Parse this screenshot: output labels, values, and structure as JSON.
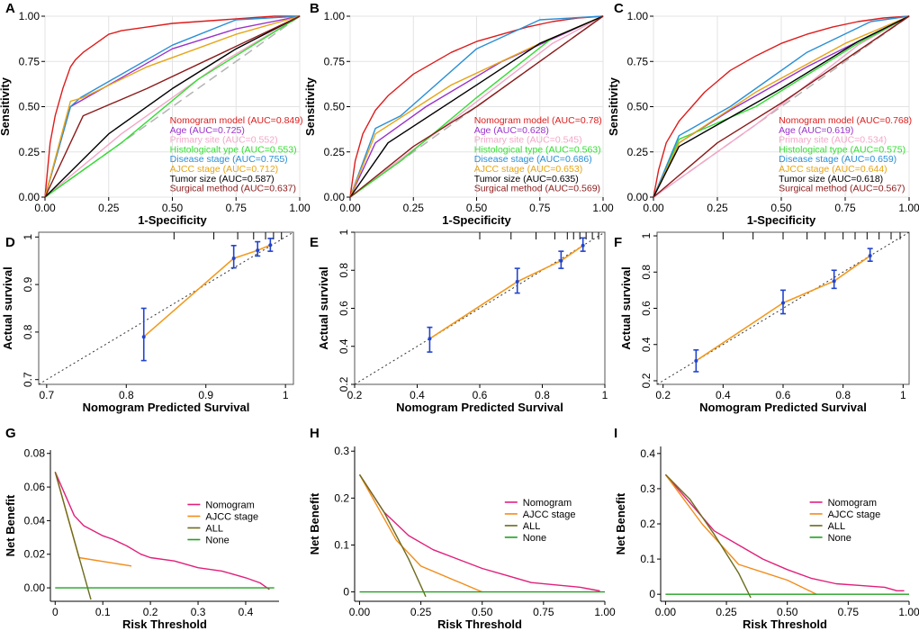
{
  "figure": {
    "colors": {
      "nomogram": "#dd1c1c",
      "age": "#9932cc",
      "primary_site": "#f4a6c8",
      "histological": "#33dd33",
      "disease_stage": "#2a8fd6",
      "ajcc": "#e6a515",
      "tumor_size": "#000000",
      "surgical": "#8b1a1a",
      "ref": "#b3b3b3",
      "dca_nomogram": "#e0207a",
      "dca_ajcc": "#f28c1a",
      "dca_all": "#6b6b1e",
      "dca_none": "#22a022",
      "cal_line": "#f29a1f",
      "cal_err": "#2244cc"
    }
  },
  "chart_data": [
    {
      "panel": "A",
      "type": "line",
      "xlabel": "1-Specificity",
      "ylabel": "Sensitivity",
      "xlim": [
        0,
        1
      ],
      "ylim": [
        0,
        1
      ],
      "xticks": [
        "0.00",
        "0.25",
        "0.50",
        "0.75",
        "1.00"
      ],
      "yticks": [
        "0.00",
        "0.25",
        "0.50",
        "0.75",
        "1.00"
      ],
      "legend": [
        "Nomogram model (AUC=0.849)",
        "Age (AUC=0.725)",
        "Primary site (AUC=0.552)",
        "Histologicalt ype (AUC=0.553)",
        "Disease stage (AUC=0.755)",
        "AJCC stage (AUC=0.712)",
        "Tumor size (AUC=0.587)",
        "Surgical method (AUC=0.637)"
      ],
      "series": [
        {
          "name": "Nomogram model",
          "color": "nomogram",
          "x": [
            0,
            0.02,
            0.04,
            0.07,
            0.1,
            0.12,
            0.15,
            0.2,
            0.25,
            0.3,
            0.4,
            0.5,
            0.6,
            0.7,
            0.8,
            0.9,
            1
          ],
          "y": [
            0,
            0.3,
            0.45,
            0.6,
            0.72,
            0.76,
            0.8,
            0.85,
            0.9,
            0.92,
            0.94,
            0.96,
            0.97,
            0.98,
            0.99,
            1,
            1
          ]
        },
        {
          "name": "Age",
          "color": "age",
          "x": [
            0,
            0.1,
            0.25,
            0.5,
            0.75,
            1
          ],
          "y": [
            0,
            0.5,
            0.62,
            0.82,
            0.93,
            1
          ]
        },
        {
          "name": "Primary site",
          "color": "primary_site",
          "x": [
            0,
            0.3,
            0.7,
            1
          ],
          "y": [
            0,
            0.35,
            0.75,
            1
          ]
        },
        {
          "name": "Histologicalt ype",
          "color": "histological",
          "x": [
            0,
            0.3,
            0.6,
            1
          ],
          "y": [
            0,
            0.3,
            0.65,
            1
          ]
        },
        {
          "name": "Disease stage",
          "color": "disease_stage",
          "x": [
            0,
            0.1,
            0.14,
            0.5,
            0.75,
            1
          ],
          "y": [
            0,
            0.5,
            0.55,
            0.84,
            0.98,
            1
          ]
        },
        {
          "name": "AJCC stage",
          "color": "ajcc",
          "x": [
            0,
            0.1,
            0.15,
            0.4,
            0.75,
            1
          ],
          "y": [
            0,
            0.53,
            0.55,
            0.72,
            0.9,
            1
          ]
        },
        {
          "name": "Tumor size",
          "color": "tumor_size",
          "x": [
            0,
            0.25,
            0.5,
            0.75,
            1
          ],
          "y": [
            0,
            0.35,
            0.6,
            0.82,
            1
          ]
        },
        {
          "name": "Surgical method",
          "color": "surgical",
          "x": [
            0,
            0.15,
            0.4,
            1
          ],
          "y": [
            0,
            0.45,
            0.6,
            1
          ]
        }
      ]
    },
    {
      "panel": "B",
      "type": "line",
      "xlabel": "1-Specificity",
      "ylabel": "Sensitivity",
      "xlim": [
        0,
        1
      ],
      "ylim": [
        0,
        1
      ],
      "xticks": [
        "0.00",
        "0.25",
        "0.50",
        "0.75",
        "1.00"
      ],
      "yticks": [
        "0.00",
        "0.25",
        "0.50",
        "0.75",
        "1.00"
      ],
      "legend": [
        "Nomogram model (AUC=0.78)",
        "Age (AUC=0.628)",
        "Primary site (AUC=0.545)",
        "Histological type (AUC=0.563)",
        "Disease stage (AUC=0.686)",
        "AJCC stage (AUC=0.653)",
        "Tumor size (AUC=0.635)",
        "Surgical method (AUC=0.569)"
      ],
      "series": [
        {
          "name": "Nomogram model",
          "color": "nomogram",
          "x": [
            0,
            0.02,
            0.05,
            0.1,
            0.15,
            0.2,
            0.25,
            0.3,
            0.4,
            0.5,
            0.6,
            0.7,
            0.8,
            0.9,
            1
          ],
          "y": [
            0,
            0.2,
            0.35,
            0.48,
            0.56,
            0.62,
            0.68,
            0.72,
            0.8,
            0.86,
            0.9,
            0.94,
            0.97,
            0.99,
            1
          ]
        },
        {
          "name": "Age",
          "color": "age",
          "x": [
            0,
            0.1,
            0.3,
            0.6,
            1
          ],
          "y": [
            0,
            0.3,
            0.5,
            0.75,
            1
          ]
        },
        {
          "name": "Primary site",
          "color": "primary_site",
          "x": [
            0,
            0.4,
            0.8,
            1
          ],
          "y": [
            0,
            0.42,
            0.85,
            1
          ]
        },
        {
          "name": "Histological type",
          "color": "histological",
          "x": [
            0,
            0.2,
            0.5,
            0.8,
            1
          ],
          "y": [
            0,
            0.2,
            0.55,
            0.88,
            1
          ]
        },
        {
          "name": "Disease stage",
          "color": "disease_stage",
          "x": [
            0,
            0.1,
            0.2,
            0.5,
            0.75,
            1
          ],
          "y": [
            0,
            0.38,
            0.45,
            0.82,
            0.98,
            1
          ]
        },
        {
          "name": "AJCC stage",
          "color": "ajcc",
          "x": [
            0,
            0.1,
            0.4,
            0.75,
            1
          ],
          "y": [
            0,
            0.35,
            0.62,
            0.85,
            1
          ]
        },
        {
          "name": "Tumor size",
          "color": "tumor_size",
          "x": [
            0,
            0.15,
            0.5,
            0.75,
            1
          ],
          "y": [
            0,
            0.3,
            0.62,
            0.85,
            1
          ]
        },
        {
          "name": "Surgical method",
          "color": "surgical",
          "x": [
            0,
            0.25,
            0.5,
            1
          ],
          "y": [
            0,
            0.28,
            0.5,
            1
          ]
        }
      ]
    },
    {
      "panel": "C",
      "type": "line",
      "xlabel": "1-Specificity",
      "ylabel": "Sensitivity",
      "xlim": [
        0,
        1
      ],
      "ylim": [
        0,
        1
      ],
      "xticks": [
        "0.00",
        "0.25",
        "0.50",
        "0.75",
        "1.00"
      ],
      "yticks": [
        "0.00",
        "0.25",
        "0.50",
        "0.75",
        "1.00"
      ],
      "legend": [
        "Nomogram model (AUC=0.768)",
        "Age (AUC=0.619)",
        "Primary site (AUC=0.534)",
        "Histological type (AUC=0.575)",
        "Disease stage (AUC=0.659)",
        "AJCC stage (AUC=0.644)",
        "Tumor size (AUC=0.618)",
        "Surgical method (AUC=0.567)"
      ],
      "series": [
        {
          "name": "Nomogram model",
          "color": "nomogram",
          "x": [
            0,
            0.02,
            0.05,
            0.1,
            0.15,
            0.2,
            0.25,
            0.3,
            0.4,
            0.5,
            0.6,
            0.7,
            0.8,
            0.9,
            1
          ],
          "y": [
            0,
            0.15,
            0.3,
            0.42,
            0.5,
            0.58,
            0.64,
            0.7,
            0.78,
            0.85,
            0.9,
            0.94,
            0.97,
            0.99,
            1
          ]
        },
        {
          "name": "Age",
          "color": "age",
          "x": [
            0,
            0.1,
            0.3,
            0.6,
            1
          ],
          "y": [
            0,
            0.3,
            0.48,
            0.72,
            1
          ]
        },
        {
          "name": "Primary site",
          "color": "primary_site",
          "x": [
            0,
            0.4,
            0.8,
            1
          ],
          "y": [
            0,
            0.4,
            0.84,
            1
          ]
        },
        {
          "name": "Histological type",
          "color": "histological",
          "x": [
            0,
            0.1,
            0.4,
            0.8,
            1
          ],
          "y": [
            0,
            0.32,
            0.5,
            0.85,
            1
          ]
        },
        {
          "name": "Disease stage",
          "color": "disease_stage",
          "x": [
            0,
            0.1,
            0.3,
            0.6,
            0.85,
            1
          ],
          "y": [
            0,
            0.34,
            0.5,
            0.8,
            0.97,
            1
          ]
        },
        {
          "name": "AJCC stage",
          "color": "ajcc",
          "x": [
            0,
            0.1,
            0.4,
            0.75,
            1
          ],
          "y": [
            0,
            0.3,
            0.58,
            0.85,
            1
          ]
        },
        {
          "name": "Tumor size",
          "color": "tumor_size",
          "x": [
            0,
            0.1,
            0.5,
            0.8,
            1
          ],
          "y": [
            0,
            0.28,
            0.6,
            0.86,
            1
          ]
        },
        {
          "name": "Surgical method",
          "color": "surgical",
          "x": [
            0,
            0.25,
            0.5,
            1
          ],
          "y": [
            0,
            0.3,
            0.52,
            1
          ]
        }
      ]
    },
    {
      "panel": "D",
      "type": "line",
      "xlabel": "Nomogram Predicted Survival",
      "ylabel": "Actual survival",
      "xlim": [
        0.69,
        1.01
      ],
      "ylim": [
        0.69,
        1.01
      ],
      "xticks": [
        0.7,
        0.8,
        0.9,
        1.0
      ],
      "yticks": [
        0.7,
        0.8,
        0.9,
        1.0
      ],
      "x": [
        0.822,
        0.935,
        0.965,
        0.981
      ],
      "y": [
        0.79,
        0.955,
        0.972,
        0.983
      ],
      "err_low": [
        0.74,
        0.935,
        0.96,
        0.97
      ],
      "err_high": [
        0.85,
        0.982,
        0.99,
        0.997
      ],
      "rug": [
        0.86,
        0.91,
        0.94,
        0.96,
        0.975,
        0.985,
        0.995
      ]
    },
    {
      "panel": "E",
      "type": "line",
      "xlabel": "Nomogram Predicted Survival",
      "ylabel": "Actual survival",
      "xlim": [
        0.2,
        1.0
      ],
      "ylim": [
        0.2,
        1.0
      ],
      "xticks": [
        0.2,
        0.4,
        0.6,
        0.8,
        1.0
      ],
      "yticks": [
        0.2,
        0.4,
        0.6,
        0.8,
        1.0
      ],
      "x": [
        0.44,
        0.72,
        0.86,
        0.93
      ],
      "y": [
        0.44,
        0.74,
        0.85,
        0.93
      ],
      "err_low": [
        0.37,
        0.68,
        0.81,
        0.9
      ],
      "err_high": [
        0.5,
        0.81,
        0.9,
        0.97
      ],
      "rug": [
        0.6,
        0.7,
        0.78,
        0.84,
        0.88,
        0.9,
        0.92,
        0.94,
        0.96,
        0.98
      ]
    },
    {
      "panel": "F",
      "type": "line",
      "xlabel": "Nomogram Predicted Survival",
      "ylabel": "Actual survival",
      "xlim": [
        0.18,
        1.02
      ],
      "ylim": [
        0.18,
        1.02
      ],
      "xticks": [
        0.2,
        0.4,
        0.6,
        0.8,
        1.0
      ],
      "yticks": [
        0.2,
        0.4,
        0.6,
        0.8,
        1.0
      ],
      "x": [
        0.31,
        0.6,
        0.77,
        0.89
      ],
      "y": [
        0.31,
        0.63,
        0.75,
        0.89
      ],
      "err_low": [
        0.25,
        0.57,
        0.71,
        0.86
      ],
      "err_high": [
        0.37,
        0.7,
        0.81,
        0.93
      ],
      "rug": [
        0.4,
        0.5,
        0.6,
        0.68,
        0.74,
        0.8,
        0.84,
        0.88,
        0.92,
        0.96,
        0.99
      ]
    },
    {
      "panel": "G",
      "type": "line",
      "xlabel": "Risk Threshold",
      "ylabel": "Net Benefit",
      "xlim": [
        -0.01,
        0.47
      ],
      "ylim": [
        -0.008,
        0.082
      ],
      "xticks": [
        0.0,
        0.1,
        0.2,
        0.3,
        0.4
      ],
      "yticks": [
        "0.00",
        "0.02",
        "0.04",
        "0.06",
        "0.08"
      ],
      "legend": [
        "Nomogram",
        "AJCC stage",
        "ALL",
        "None"
      ],
      "series": [
        {
          "name": "Nomogram",
          "color": "dca_nomogram",
          "x": [
            0,
            0.04,
            0.06,
            0.08,
            0.1,
            0.12,
            0.15,
            0.18,
            0.2,
            0.25,
            0.3,
            0.35,
            0.4,
            0.43,
            0.44,
            0.45
          ],
          "y": [
            0.069,
            0.043,
            0.037,
            0.034,
            0.031,
            0.029,
            0.025,
            0.02,
            0.018,
            0.016,
            0.012,
            0.01,
            0.006,
            0.003,
            0.001,
            -0.001
          ]
        },
        {
          "name": "AJCC stage",
          "color": "dca_ajcc",
          "x": [
            0,
            0.05,
            0.16
          ],
          "y": [
            0.069,
            0.018,
            0.013
          ]
        },
        {
          "name": "ALL",
          "color": "dca_all",
          "x": [
            0,
            0.075
          ],
          "y": [
            0.069,
            -0.007
          ]
        },
        {
          "name": "None",
          "color": "dca_none",
          "x": [
            0,
            0.46
          ],
          "y": [
            0,
            0
          ]
        }
      ]
    },
    {
      "panel": "H",
      "type": "line",
      "xlabel": "Risk Threshold",
      "ylabel": "Net Benefit",
      "xlim": [
        -0.02,
        1.0
      ],
      "ylim": [
        -0.02,
        0.31
      ],
      "xticks": [
        "0.00",
        "0.25",
        "0.50",
        "0.75",
        "1.00"
      ],
      "yticks": [
        0.0,
        0.1,
        0.2,
        0.3
      ],
      "legend": [
        "Nomogram",
        "AJCC stage",
        "ALL",
        "None"
      ],
      "series": [
        {
          "name": "Nomogram",
          "color": "dca_nomogram",
          "x": [
            0,
            0.1,
            0.2,
            0.3,
            0.4,
            0.5,
            0.6,
            0.7,
            0.8,
            0.9,
            0.95,
            0.98
          ],
          "y": [
            0.25,
            0.17,
            0.12,
            0.09,
            0.07,
            0.05,
            0.035,
            0.02,
            0.015,
            0.01,
            0.005,
            0.002
          ]
        },
        {
          "name": "AJCC stage",
          "color": "dca_ajcc",
          "x": [
            0,
            0.15,
            0.25,
            0.5
          ],
          "y": [
            0.25,
            0.11,
            0.055,
            0
          ]
        },
        {
          "name": "ALL",
          "color": "dca_all",
          "x": [
            0,
            0.1,
            0.2,
            0.27
          ],
          "y": [
            0.25,
            0.17,
            0.07,
            -0.01
          ]
        },
        {
          "name": "None",
          "color": "dca_none",
          "x": [
            0,
            1
          ],
          "y": [
            0,
            0
          ]
        }
      ]
    },
    {
      "panel": "I",
      "type": "line",
      "xlabel": "Risk Threshold",
      "ylabel": "Net Benefit",
      "xlim": [
        -0.02,
        1.0
      ],
      "ylim": [
        -0.02,
        0.42
      ],
      "xticks": [
        "0.00",
        "0.25",
        "0.50",
        "0.75",
        "1.00"
      ],
      "yticks": [
        0.0,
        0.1,
        0.2,
        0.3,
        0.4
      ],
      "legend": [
        "Nomogram",
        "AJCC stage",
        "ALL",
        "None"
      ],
      "series": [
        {
          "name": "Nomogram",
          "color": "dca_nomogram",
          "x": [
            0,
            0.1,
            0.2,
            0.3,
            0.4,
            0.5,
            0.6,
            0.7,
            0.8,
            0.9,
            0.95,
            0.98
          ],
          "y": [
            0.34,
            0.26,
            0.18,
            0.14,
            0.1,
            0.07,
            0.045,
            0.03,
            0.025,
            0.02,
            0.01,
            0.01
          ]
        },
        {
          "name": "AJCC stage",
          "color": "dca_ajcc",
          "x": [
            0,
            0.15,
            0.3,
            0.5,
            0.62
          ],
          "y": [
            0.34,
            0.2,
            0.085,
            0.04,
            0
          ]
        },
        {
          "name": "ALL",
          "color": "dca_all",
          "x": [
            0,
            0.1,
            0.2,
            0.3,
            0.35
          ],
          "y": [
            0.34,
            0.27,
            0.17,
            0.06,
            -0.01
          ]
        },
        {
          "name": "None",
          "color": "dca_none",
          "x": [
            0,
            1
          ],
          "y": [
            0,
            0
          ]
        }
      ]
    }
  ]
}
